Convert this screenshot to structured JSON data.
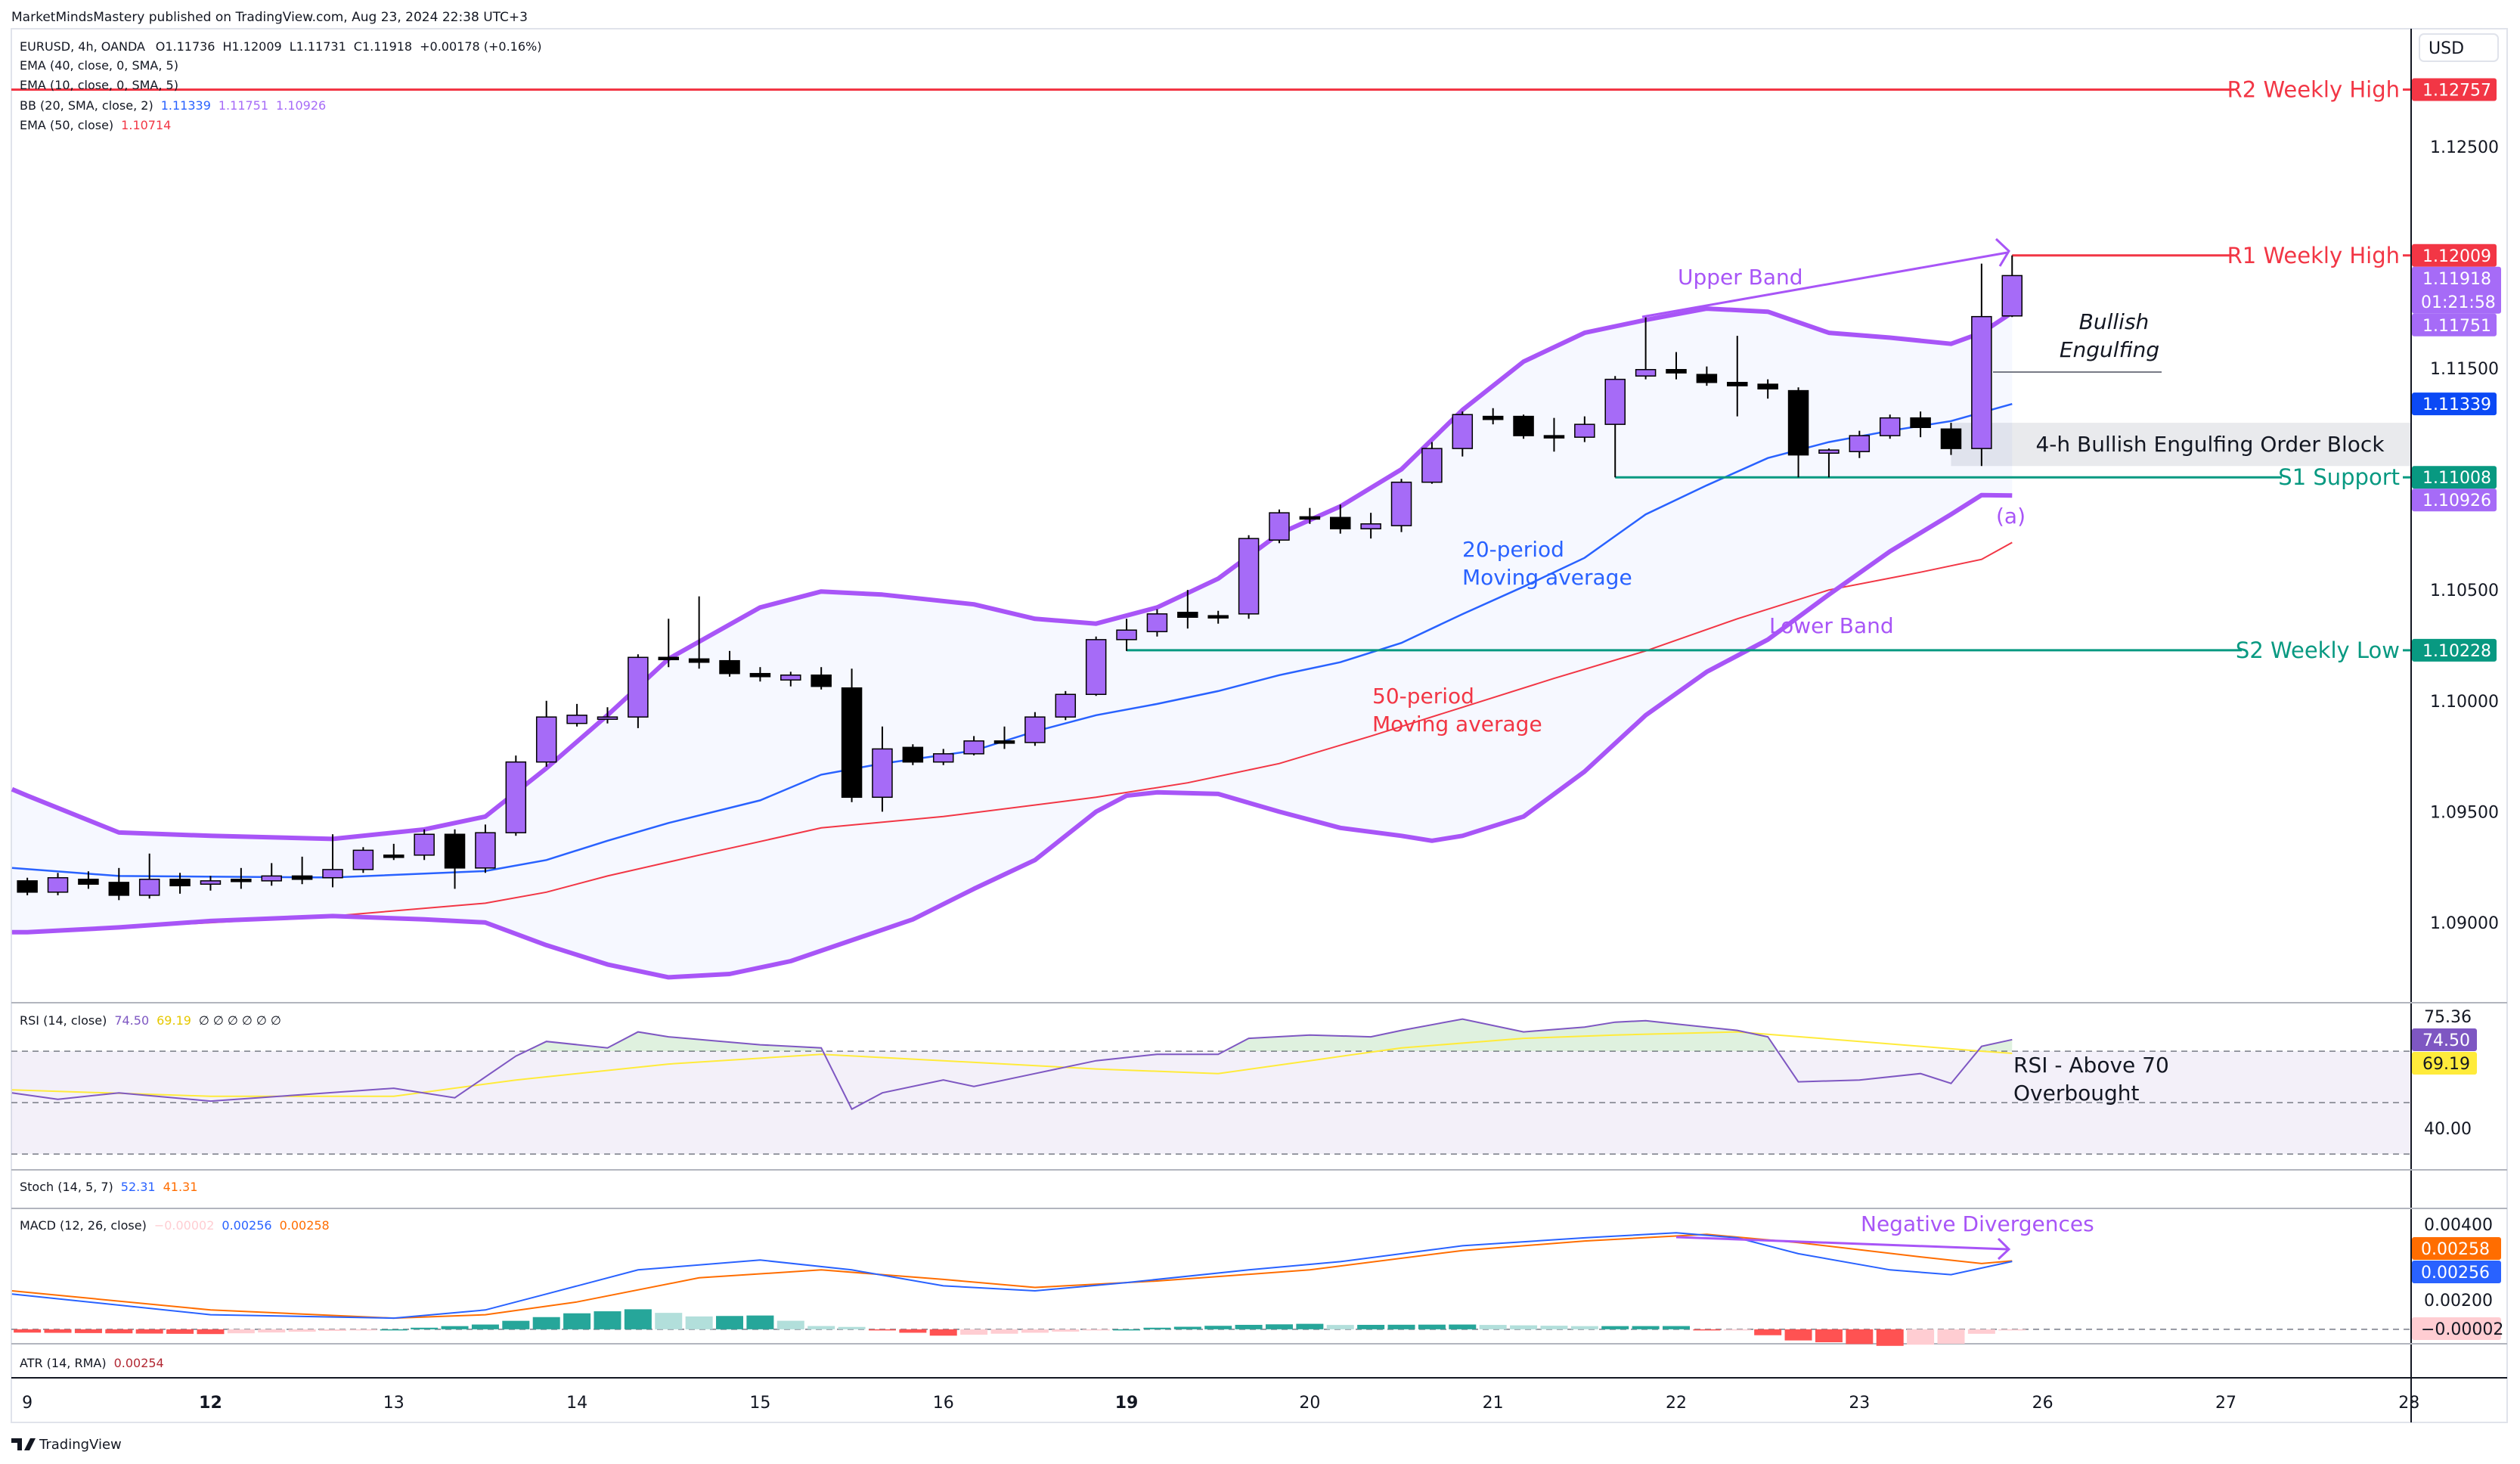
{
  "header": {
    "published": "MarketMindsMastery published on TradingView.com, Aug 23, 2024 22:38 UTC+3"
  },
  "legend": {
    "symbol": "EURUSD, 4h, OANDA",
    "open": "O1.11736",
    "high": "H1.12009",
    "low": "L1.11731",
    "close": "C1.11918",
    "change": "+0.00178 (+0.16%)",
    "ema40": "EMA (40, close, 0, SMA, 5)",
    "ema10": "EMA (10, close, 0, SMA, 5)",
    "bb": "BB (20, SMA, close, 2)",
    "bb_basis": "1.11339",
    "bb_upper": "1.11751",
    "bb_lower": "1.10926",
    "ema50": "EMA (50, close)",
    "ema50_val": "1.10714"
  },
  "price_axis": {
    "currency": "USD",
    "ticks": [
      "1.12500",
      "1.11500",
      "1.10500",
      "1.10000",
      "1.09500",
      "1.09000"
    ],
    "tags": [
      {
        "text": "1.12757",
        "price": 1.12757,
        "color": "#f23645"
      },
      {
        "text": "1.12009",
        "price": 1.12009,
        "color": "#f23645"
      },
      {
        "text": "1.11918",
        "sub": "01:21:58",
        "price": 1.11918,
        "color": "#a66bf7"
      },
      {
        "text": "1.11751",
        "price": 1.11751,
        "color": "#a66bf7"
      },
      {
        "text": "1.11339",
        "price": 1.11339,
        "color": "#0b49f5"
      },
      {
        "text": "1.11008",
        "price": 1.11008,
        "color": "#089981"
      },
      {
        "text": "1.10926",
        "price": 1.10926,
        "color": "#a66bf7"
      },
      {
        "text": "1.10228",
        "price": 1.10228,
        "color": "#089981"
      }
    ]
  },
  "levels": [
    {
      "label": "R2 Weekly High",
      "price": 1.12757,
      "from": -1,
      "color": "#f23645"
    },
    {
      "label": "R1 Weekly High",
      "price": 1.12009,
      "from": 65,
      "color": "#f23645"
    },
    {
      "label": "S1 Support",
      "price": 1.11008,
      "from": 52,
      "color": "#089981"
    },
    {
      "label": "S2 Weekly Low",
      "price": 1.10228,
      "from": 36,
      "color": "#089981"
    }
  ],
  "annotations": {
    "upper_band": "Upper Band",
    "bullish_1": "Bullish",
    "bullish_2": "Engulfing",
    "order_block": "4-h Bullish Engulfing Order Block",
    "a_mark": "(a)",
    "ma20_1": "20-period",
    "ma20_2": "Moving average",
    "ma50_1": "50-period",
    "ma50_2": "Moving average",
    "lower_band": "Lower Band",
    "rsi_1": "RSI - Above 70",
    "rsi_2": "Overbought",
    "neg_div": "Negative Divergences"
  },
  "panes": {
    "rsi": {
      "label": "RSI (14, close)",
      "v1": "74.50",
      "v2": "69.19",
      "extras": "∅ ∅ ∅ ∅ ∅ ∅",
      "ticks": [
        "75.36",
        "40.00"
      ],
      "tag1": "74.50",
      "tag2": "69.19"
    },
    "stoch": {
      "label": "Stoch (14, 5, 7)",
      "v1": "52.31",
      "v2": "41.31"
    },
    "macd": {
      "label": "MACD (12, 26, close)",
      "hist": "−0.00002",
      "macd": "0.00256",
      "signal": "0.00258",
      "ticks": [
        "0.00400",
        "0.00200"
      ],
      "tag_signal": "0.00258",
      "tag_macd": "0.00256",
      "tag_hist": "−0.00002"
    },
    "atr": {
      "label": "ATR (14, RMA)",
      "v1": "0.00254"
    }
  },
  "time_axis": [
    {
      "label": "9",
      "bar": 0,
      "bold": false
    },
    {
      "label": "12",
      "bar": 6,
      "bold": true
    },
    {
      "label": "13",
      "bar": 12,
      "bold": false
    },
    {
      "label": "14",
      "bar": 18,
      "bold": false
    },
    {
      "label": "15",
      "bar": 24,
      "bold": false
    },
    {
      "label": "16",
      "bar": 30,
      "bold": false
    },
    {
      "label": "19",
      "bar": 36,
      "bold": true
    },
    {
      "label": "20",
      "bar": 42,
      "bold": false
    },
    {
      "label": "21",
      "bar": 48,
      "bold": false
    },
    {
      "label": "22",
      "bar": 54,
      "bold": false
    },
    {
      "label": "23",
      "bar": 60,
      "bold": false
    },
    {
      "label": "26",
      "bar": 66,
      "bold": false
    },
    {
      "label": "27",
      "bar": 72,
      "bold": false
    },
    {
      "label": "28",
      "bar": 78,
      "bold": false
    }
  ],
  "footer": {
    "brand": "TradingView"
  },
  "colors": {
    "bull": "#a66bf7",
    "bear": "#000000",
    "band": "#a855f7",
    "basis": "#2962ff",
    "ema50": "#f23645",
    "rsi": "#7e57c2",
    "rsi_ma": "#ffeb3b",
    "macd": "#2962ff",
    "signal": "#ff6d00"
  },
  "chart_data": {
    "type": "candlestick",
    "title": "EURUSD, 4h, OANDA",
    "ylabel": "USD",
    "ylim": [
      1.087,
      1.1295
    ],
    "candles_ohlc": [
      [
        1.09188,
        1.09202,
        1.09123,
        1.09137
      ],
      [
        1.09137,
        1.09224,
        1.09123,
        1.09202
      ],
      [
        1.09195,
        1.09231,
        1.09152,
        1.09173
      ],
      [
        1.09181,
        1.09246,
        1.09101,
        1.09123
      ],
      [
        1.09123,
        1.09311,
        1.09108,
        1.09195
      ],
      [
        1.09195,
        1.09224,
        1.0913,
        1.09166
      ],
      [
        1.09173,
        1.0921,
        1.09144,
        1.09188
      ],
      [
        1.09195,
        1.09246,
        1.09152,
        1.09188
      ],
      [
        1.09188,
        1.09268,
        1.09166,
        1.0921
      ],
      [
        1.0921,
        1.09297,
        1.09173,
        1.09195
      ],
      [
        1.09202,
        1.09398,
        1.09159,
        1.09239
      ],
      [
        1.09239,
        1.0934,
        1.09224,
        1.09326
      ],
      [
        1.09304,
        1.09355,
        1.09282,
        1.09297
      ],
      [
        1.09304,
        1.0942,
        1.09282,
        1.09398
      ],
      [
        1.09398,
        1.0942,
        1.09152,
        1.09246
      ],
      [
        1.09246,
        1.09442,
        1.09224,
        1.09405
      ],
      [
        1.09405,
        1.09753,
        1.09391,
        1.09724
      ],
      [
        1.09724,
        1.1,
        1.09703,
        1.09927
      ],
      [
        1.09898,
        1.09986,
        1.09884,
        1.09935
      ],
      [
        1.0992,
        1.09971,
        1.09898,
        1.09927
      ],
      [
        1.09927,
        1.1021,
        1.09877,
        1.10196
      ],
      [
        1.10196,
        1.1037,
        1.10152,
        1.10189
      ],
      [
        1.10189,
        1.10471,
        1.10145,
        1.10174
      ],
      [
        1.10181,
        1.10225,
        1.10109,
        1.10123
      ],
      [
        1.10123,
        1.10152,
        1.10087,
        1.10109
      ],
      [
        1.10094,
        1.10131,
        1.10065,
        1.10116
      ],
      [
        1.10116,
        1.10152,
        1.10051,
        1.10065
      ],
      [
        1.10058,
        1.10145,
        1.09543,
        1.09565
      ],
      [
        1.09565,
        1.09884,
        1.095,
        1.09783
      ],
      [
        1.0979,
        1.09804,
        1.0971,
        1.09724
      ],
      [
        1.09724,
        1.09783,
        1.0971,
        1.09761
      ],
      [
        1.09761,
        1.09841,
        1.09754,
        1.09819
      ],
      [
        1.09819,
        1.09884,
        1.09783,
        1.09812
      ],
      [
        1.09812,
        1.09949,
        1.09797,
        1.09927
      ],
      [
        1.09927,
        1.10044,
        1.09913,
        1.10029
      ],
      [
        1.10029,
        1.1029,
        1.10022,
        1.10276
      ],
      [
        1.10276,
        1.1037,
        1.10225,
        1.10319
      ],
      [
        1.10312,
        1.10413,
        1.1029,
        1.10392
      ],
      [
        1.10399,
        1.105,
        1.10326,
        1.10377
      ],
      [
        1.10384,
        1.10406,
        1.10348,
        1.10377
      ],
      [
        1.10392,
        1.10747,
        1.1037,
        1.10732
      ],
      [
        1.10725,
        1.10863,
        1.10711,
        1.10848
      ],
      [
        1.1083,
        1.1087,
        1.10798,
        1.10827
      ],
      [
        1.10827,
        1.10885,
        1.10754,
        1.10776
      ],
      [
        1.10776,
        1.10848,
        1.10732,
        1.10798
      ],
      [
        1.1079,
        1.11001,
        1.10761,
        1.10986
      ],
      [
        1.10986,
        1.11167,
        1.10979,
        1.11138
      ],
      [
        1.11138,
        1.11305,
        1.11102,
        1.11291
      ],
      [
        1.11283,
        1.1132,
        1.11247,
        1.11269
      ],
      [
        1.11283,
        1.11291,
        1.11182,
        1.11196
      ],
      [
        1.11196,
        1.11276,
        1.11124,
        1.11189
      ],
      [
        1.11189,
        1.11283,
        1.11167,
        1.11247
      ],
      [
        1.11247,
        1.11465,
        1.11008,
        1.1145
      ],
      [
        1.11465,
        1.11733,
        1.1145,
        1.11494
      ],
      [
        1.11494,
        1.11573,
        1.1145,
        1.11479
      ],
      [
        1.11472,
        1.11508,
        1.11421,
        1.11436
      ],
      [
        1.11436,
        1.11646,
        1.11283,
        1.11421
      ],
      [
        1.11428,
        1.1145,
        1.11363,
        1.11407
      ],
      [
        1.11399,
        1.11414,
        1.11008,
        1.11109
      ],
      [
        1.11117,
        1.11138,
        1.11008,
        1.11131
      ],
      [
        1.11124,
        1.11218,
        1.11095,
        1.11196
      ],
      [
        1.11196,
        1.11291,
        1.11182,
        1.11276
      ],
      [
        1.11276,
        1.11305,
        1.11189,
        1.11233
      ],
      [
        1.11226,
        1.11254,
        1.11109,
        1.11138
      ],
      [
        1.11138,
        1.11972,
        1.11059,
        1.11733
      ],
      [
        1.11736,
        1.12009,
        1.11731,
        1.11918
      ]
    ],
    "bb_upper": [
      [
        -0.5,
        1.09601
      ],
      [
        0,
        1.09572
      ],
      [
        3,
        1.09406
      ],
      [
        6,
        1.09391
      ],
      [
        10,
        1.09377
      ],
      [
        13,
        1.0942
      ],
      [
        15,
        1.09478
      ],
      [
        17,
        1.09696
      ],
      [
        19,
        1.09935
      ],
      [
        21,
        1.10189
      ],
      [
        24,
        1.10421
      ],
      [
        26,
        1.10493
      ],
      [
        28,
        1.10479
      ],
      [
        31,
        1.10435
      ],
      [
        33,
        1.1037
      ],
      [
        35,
        1.10348
      ],
      [
        37,
        1.10421
      ],
      [
        39,
        1.10551
      ],
      [
        41,
        1.10754
      ],
      [
        43,
        1.10877
      ],
      [
        45,
        1.11044
      ],
      [
        47,
        1.11312
      ],
      [
        49,
        1.1153
      ],
      [
        51,
        1.1166
      ],
      [
        53,
        1.11718
      ],
      [
        55,
        1.11769
      ],
      [
        57,
        1.11755
      ],
      [
        59,
        1.1166
      ],
      [
        61,
        1.11638
      ],
      [
        63,
        1.1161
      ],
      [
        64,
        1.1166
      ],
      [
        65,
        1.11751
      ]
    ],
    "bb_lower": [
      [
        -0.5,
        1.08956
      ],
      [
        0,
        1.08956
      ],
      [
        3,
        1.08978
      ],
      [
        6,
        1.09007
      ],
      [
        10,
        1.09029
      ],
      [
        13,
        1.09014
      ],
      [
        15,
        1.09
      ],
      [
        17,
        1.08898
      ],
      [
        19,
        1.08811
      ],
      [
        21,
        1.08753
      ],
      [
        23,
        1.08768
      ],
      [
        25,
        1.08826
      ],
      [
        27,
        1.0892
      ],
      [
        29,
        1.09014
      ],
      [
        31,
        1.09152
      ],
      [
        33,
        1.09282
      ],
      [
        35,
        1.095
      ],
      [
        36,
        1.09572
      ],
      [
        37,
        1.09587
      ],
      [
        39,
        1.0958
      ],
      [
        41,
        1.095
      ],
      [
        43,
        1.09427
      ],
      [
        45,
        1.09391
      ],
      [
        46,
        1.09369
      ],
      [
        47,
        1.09391
      ],
      [
        49,
        1.09478
      ],
      [
        51,
        1.09681
      ],
      [
        53,
        1.09935
      ],
      [
        55,
        1.10131
      ],
      [
        57,
        1.10276
      ],
      [
        59,
        1.10479
      ],
      [
        61,
        1.10674
      ],
      [
        63,
        1.10841
      ],
      [
        64,
        1.10928
      ],
      [
        65,
        1.10926
      ]
    ],
    "bb_basis": [
      [
        -0.5,
        1.09246
      ],
      [
        3,
        1.0921
      ],
      [
        10,
        1.09203
      ],
      [
        15,
        1.09232
      ],
      [
        17,
        1.09282
      ],
      [
        19,
        1.09369
      ],
      [
        21,
        1.09449
      ],
      [
        24,
        1.09551
      ],
      [
        26,
        1.09667
      ],
      [
        28,
        1.09717
      ],
      [
        31,
        1.09775
      ],
      [
        33,
        1.09862
      ],
      [
        35,
        1.09935
      ],
      [
        37,
        1.09986
      ],
      [
        39,
        1.10044
      ],
      [
        41,
        1.10116
      ],
      [
        43,
        1.10174
      ],
      [
        45,
        1.10261
      ],
      [
        47,
        1.10391
      ],
      [
        49,
        1.10515
      ],
      [
        51,
        1.10645
      ],
      [
        53,
        1.10841
      ],
      [
        55,
        1.10972
      ],
      [
        57,
        1.11095
      ],
      [
        59,
        1.11167
      ],
      [
        61,
        1.11218
      ],
      [
        63,
        1.11262
      ],
      [
        65,
        1.11339
      ]
    ],
    "ema50": [
      [
        -0.5,
        1.08956
      ],
      [
        5,
        1.08992
      ],
      [
        10,
        1.09029
      ],
      [
        15,
        1.09087
      ],
      [
        17,
        1.09137
      ],
      [
        19,
        1.0921
      ],
      [
        22,
        1.09304
      ],
      [
        26,
        1.09427
      ],
      [
        30,
        1.09478
      ],
      [
        35,
        1.09565
      ],
      [
        38,
        1.0963
      ],
      [
        41,
        1.09717
      ],
      [
        44,
        1.09841
      ],
      [
        47,
        1.09971
      ],
      [
        50,
        1.10101
      ],
      [
        53,
        1.10225
      ],
      [
        56,
        1.1037
      ],
      [
        59,
        1.105
      ],
      [
        62,
        1.1058
      ],
      [
        64,
        1.10638
      ],
      [
        65,
        1.10714
      ]
    ],
    "rsi": [
      [
        -0.5,
        53.8
      ],
      [
        1,
        51.3
      ],
      [
        3,
        53.8
      ],
      [
        6,
        50.6
      ],
      [
        9,
        53.1
      ],
      [
        12,
        55.6
      ],
      [
        14,
        51.9
      ],
      [
        16,
        68.1
      ],
      [
        17,
        73.8
      ],
      [
        19,
        71.3
      ],
      [
        20,
        77.5
      ],
      [
        21,
        75.6
      ],
      [
        24,
        72.5
      ],
      [
        26,
        71.3
      ],
      [
        27,
        47.5
      ],
      [
        28,
        53.8
      ],
      [
        30,
        58.8
      ],
      [
        31,
        56.3
      ],
      [
        33,
        61.3
      ],
      [
        35,
        66.3
      ],
      [
        37,
        68.8
      ],
      [
        39,
        68.8
      ],
      [
        40,
        75.0
      ],
      [
        42,
        76.3
      ],
      [
        44,
        75.6
      ],
      [
        45,
        78.1
      ],
      [
        47,
        82.5
      ],
      [
        49,
        77.5
      ],
      [
        51,
        79.4
      ],
      [
        52,
        81.3
      ],
      [
        53,
        81.9
      ],
      [
        54,
        80.6
      ],
      [
        56,
        78.1
      ],
      [
        57,
        75.6
      ],
      [
        58,
        58.1
      ],
      [
        60,
        58.8
      ],
      [
        62,
        61.3
      ],
      [
        63,
        57.5
      ],
      [
        64,
        71.9
      ],
      [
        65,
        74.5
      ]
    ],
    "rsi_ma": [
      [
        -0.5,
        55.0
      ],
      [
        6,
        52.5
      ],
      [
        12,
        52.5
      ],
      [
        16,
        58.8
      ],
      [
        21,
        65.0
      ],
      [
        26,
        68.8
      ],
      [
        30,
        66.3
      ],
      [
        35,
        63.1
      ],
      [
        39,
        61.3
      ],
      [
        42,
        66.3
      ],
      [
        45,
        71.3
      ],
      [
        49,
        75.0
      ],
      [
        52,
        76.3
      ],
      [
        56,
        77.5
      ],
      [
        60,
        73.8
      ],
      [
        64,
        70.0
      ],
      [
        65,
        69.19
      ]
    ],
    "rsi_levels": [
      70,
      50,
      30
    ],
    "macd": [
      [
        -0.5,
        0.00133
      ],
      [
        6,
        0.00055
      ],
      [
        12,
        0.00042
      ],
      [
        15,
        0.00073
      ],
      [
        17,
        0.00133
      ],
      [
        20,
        0.00224
      ],
      [
        24,
        0.00261
      ],
      [
        27,
        0.00224
      ],
      [
        30,
        0.00164
      ],
      [
        33,
        0.00145
      ],
      [
        36,
        0.00176
      ],
      [
        40,
        0.00224
      ],
      [
        43,
        0.00255
      ],
      [
        47,
        0.00315
      ],
      [
        51,
        0.00345
      ],
      [
        54,
        0.00364
      ],
      [
        56,
        0.00345
      ],
      [
        58,
        0.00285
      ],
      [
        61,
        0.00224
      ],
      [
        63,
        0.00206
      ],
      [
        65,
        0.00256
      ]
    ],
    "macd_signal": [
      [
        -0.5,
        0.00145
      ],
      [
        6,
        0.00073
      ],
      [
        12,
        0.00042
      ],
      [
        15,
        0.00055
      ],
      [
        18,
        0.00103
      ],
      [
        22,
        0.00194
      ],
      [
        26,
        0.00224
      ],
      [
        30,
        0.00188
      ],
      [
        33,
        0.00158
      ],
      [
        37,
        0.00182
      ],
      [
        42,
        0.00224
      ],
      [
        47,
        0.00297
      ],
      [
        51,
        0.00333
      ],
      [
        55,
        0.00358
      ],
      [
        58,
        0.00327
      ],
      [
        62,
        0.00273
      ],
      [
        64,
        0.00248
      ],
      [
        65,
        0.00258
      ]
    ],
    "order_block": {
      "from_bar": 63,
      "top": 1.11254,
      "bottom": 1.11059
    }
  }
}
